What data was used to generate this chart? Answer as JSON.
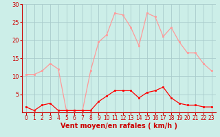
{
  "x": [
    0,
    1,
    2,
    3,
    4,
    5,
    6,
    7,
    8,
    9,
    10,
    11,
    12,
    13,
    14,
    15,
    16,
    17,
    18,
    19,
    20,
    21,
    22,
    23
  ],
  "wind_avg": [
    1.5,
    0.5,
    2.0,
    2.5,
    0.5,
    0.5,
    0.5,
    0.5,
    0.5,
    3.0,
    4.5,
    6.0,
    6.0,
    6.0,
    4.0,
    5.5,
    6.0,
    7.0,
    4.0,
    2.5,
    2.0,
    2.0,
    1.5,
    1.5
  ],
  "wind_gust": [
    10.5,
    10.5,
    11.5,
    13.5,
    12.0,
    0.5,
    0.5,
    0.5,
    11.5,
    19.5,
    21.5,
    27.5,
    27.0,
    23.5,
    18.5,
    27.5,
    26.5,
    21.0,
    23.5,
    19.5,
    16.5,
    16.5,
    13.5,
    11.5
  ],
  "avg_color": "#ff0000",
  "gust_color": "#ff9999",
  "bg_color": "#cceee8",
  "grid_color": "#aacccc",
  "ylim": [
    0,
    30
  ],
  "yticks": [
    5,
    10,
    15,
    20,
    25,
    30
  ],
  "xlim": [
    -0.5,
    23.5
  ],
  "xlabel": "Vent moyen/en rafales ( km/h )",
  "axis_color": "#cc0000",
  "tick_color": "#cc0000"
}
